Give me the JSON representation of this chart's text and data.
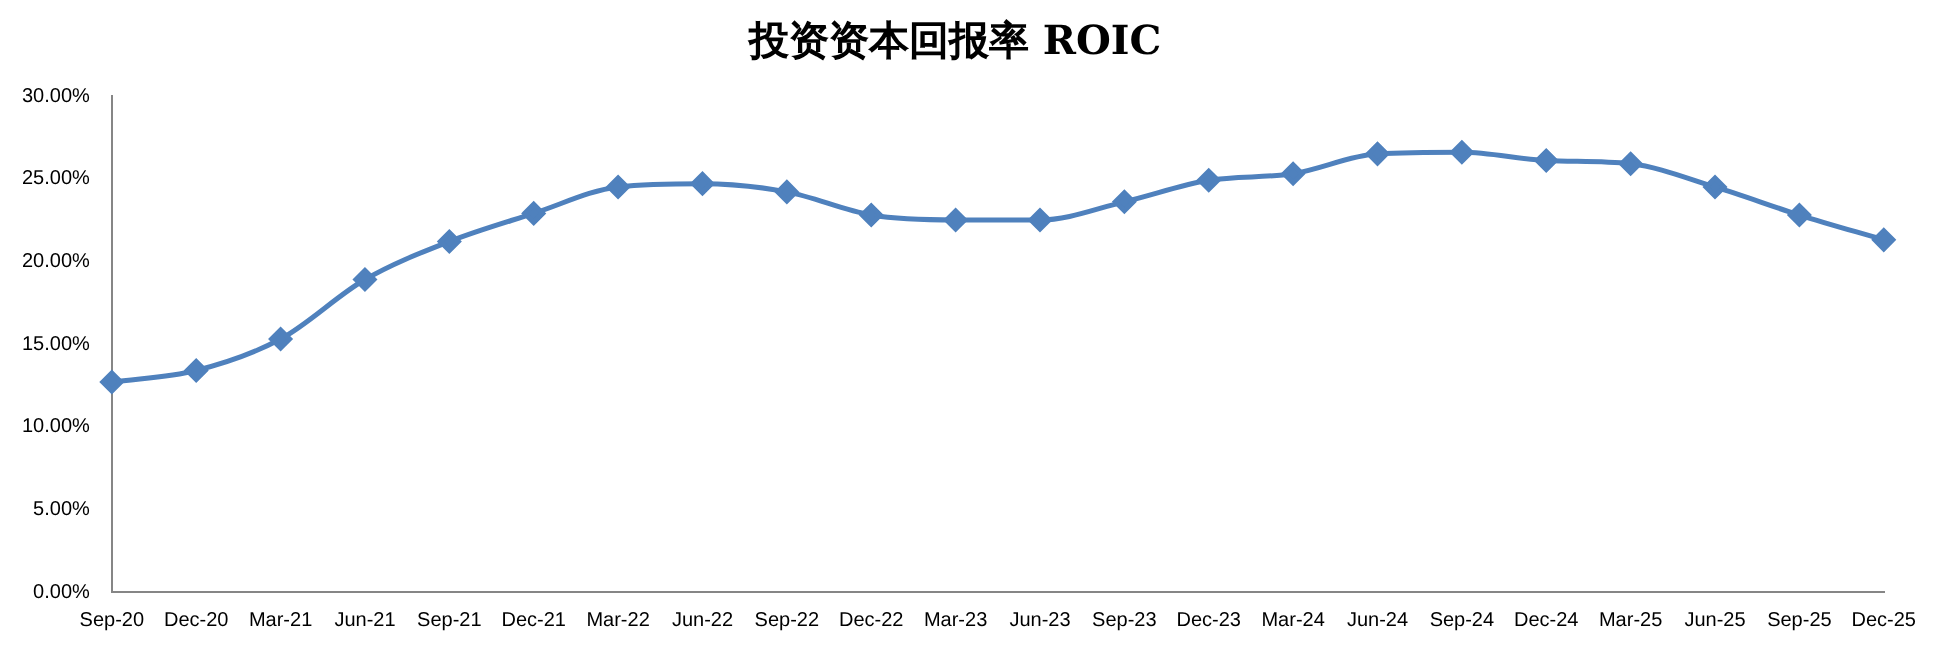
{
  "chart_data": {
    "type": "line",
    "title": "投资资本回报率 ROIC",
    "categories": [
      "Sep-20",
      "Dec-20",
      "Mar-21",
      "Jun-21",
      "Sep-21",
      "Dec-21",
      "Mar-22",
      "Jun-22",
      "Sep-22",
      "Dec-22",
      "Mar-23",
      "Jun-23",
      "Sep-23",
      "Dec-23",
      "Mar-24",
      "Jun-24",
      "Sep-24",
      "Dec-24",
      "Mar-25",
      "Jun-25",
      "Sep-25",
      "Dec-25"
    ],
    "series": [
      {
        "color": "#4f81bd",
        "values": [
          12.7,
          13.4,
          15.3,
          18.9,
          21.2,
          22.9,
          24.5,
          24.7,
          24.2,
          22.8,
          22.5,
          22.5,
          23.6,
          24.9,
          25.3,
          26.5,
          26.6,
          26.1,
          25.9,
          24.5,
          22.8,
          21.3
        ]
      }
    ],
    "ylim": [
      0,
      30
    ],
    "yticks": [
      {
        "value": 0,
        "label": "0.00%"
      },
      {
        "value": 5,
        "label": "5.00%"
      },
      {
        "value": 10,
        "label": "10.00%"
      },
      {
        "value": 15,
        "label": "15.00%"
      },
      {
        "value": 20,
        "label": "20.00%"
      },
      {
        "value": 25,
        "label": "25.00%"
      },
      {
        "value": 30,
        "label": "30.00%"
      }
    ],
    "grid": false,
    "legend": false,
    "marker": "diamond",
    "line_style": "solid"
  }
}
